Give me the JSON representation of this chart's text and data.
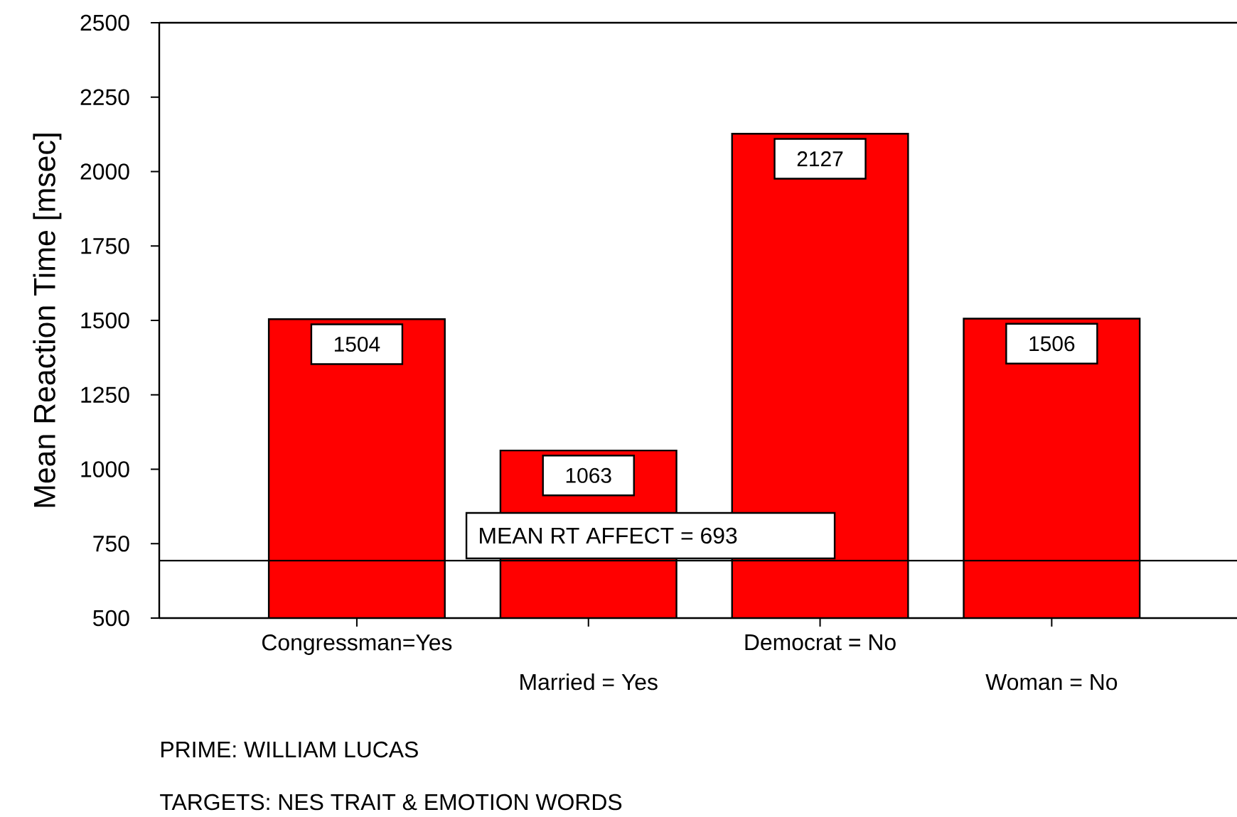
{
  "chart_data": {
    "type": "bar",
    "ylabel": "Mean Reaction Time [msec]",
    "categories": [
      "Congressman=Yes",
      "Married = Yes",
      "Democrat = No",
      "Woman = No"
    ],
    "values": [
      1504,
      1063,
      2127,
      1506
    ],
    "color": "#ff0000",
    "data_labels": true,
    "ylim": [
      500,
      2500
    ],
    "yticks": [
      500,
      750,
      1000,
      1250,
      1500,
      1750,
      2000,
      2250,
      2500
    ],
    "ref_lines": [
      {
        "axis": "y",
        "value": 693,
        "label": "MEAN RT AFFECT = 693"
      }
    ],
    "annotations": [
      "PRIME: WILLIAM LUCAS",
      "TARGETS: NES TRAIT & EMOTION WORDS"
    ]
  }
}
